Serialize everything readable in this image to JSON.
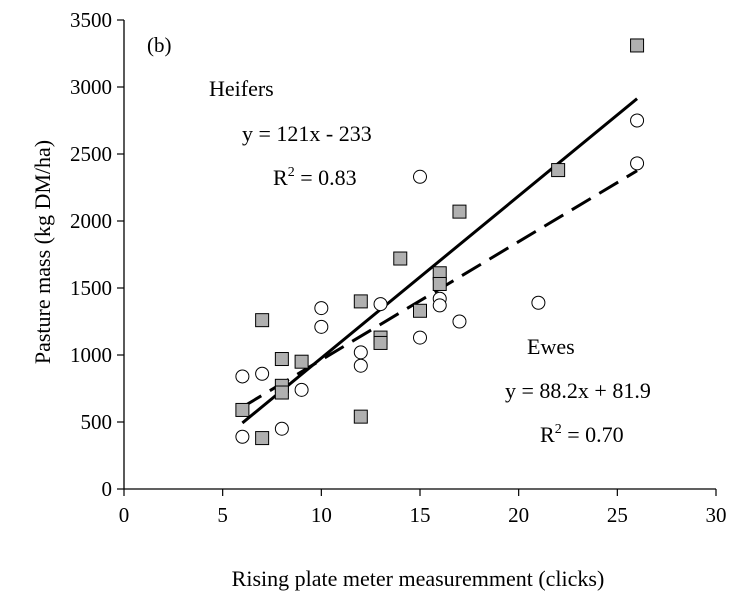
{
  "chart_data": {
    "type": "scatter",
    "panel_label": "(b)",
    "xlabel": "Rising plate meter measuremment (clicks)",
    "ylabel": "Pasture mass (kg DM/ha)",
    "xlim": [
      0,
      30
    ],
    "ylim": [
      0,
      3500
    ],
    "x_ticks": [
      "0",
      "5",
      "10",
      "15",
      "20",
      "25",
      "30"
    ],
    "y_ticks": [
      "0",
      "500",
      "1000",
      "1500",
      "2000",
      "2500",
      "3000",
      "3500"
    ],
    "grid": false,
    "series": [
      {
        "name": "Heifers",
        "marker": "square",
        "color": "#b0b0b0",
        "points": [
          [
            6,
            590
          ],
          [
            7,
            1260
          ],
          [
            7,
            380
          ],
          [
            8,
            970
          ],
          [
            8,
            770
          ],
          [
            8,
            720
          ],
          [
            9,
            950
          ],
          [
            12,
            1400
          ],
          [
            12,
            540
          ],
          [
            13,
            1130
          ],
          [
            13,
            1090
          ],
          [
            14,
            1720
          ],
          [
            15,
            1330
          ],
          [
            16,
            1610
          ],
          [
            16,
            1530
          ],
          [
            17,
            2070
          ],
          [
            22,
            2380
          ],
          [
            26,
            3310
          ]
        ],
        "fit": {
          "slope": 121,
          "intercept": -233,
          "x_range": [
            6,
            26
          ],
          "line_style": "solid"
        }
      },
      {
        "name": "Ewes",
        "marker": "circle",
        "color": "#ffffff",
        "points": [
          [
            6,
            840
          ],
          [
            6,
            390
          ],
          [
            7,
            860
          ],
          [
            8,
            450
          ],
          [
            9,
            740
          ],
          [
            10,
            1350
          ],
          [
            10,
            1210
          ],
          [
            12,
            1020
          ],
          [
            12,
            920
          ],
          [
            13,
            1380
          ],
          [
            15,
            2330
          ],
          [
            15,
            1130
          ],
          [
            16,
            1420
          ],
          [
            16,
            1370
          ],
          [
            17,
            1250
          ],
          [
            21,
            1390
          ],
          [
            26,
            2750
          ],
          [
            26,
            2430
          ]
        ],
        "fit": {
          "slope": 88.2,
          "intercept": 81.9,
          "x_range": [
            6,
            26
          ],
          "line_style": "dashed"
        }
      }
    ],
    "annotations": {
      "heifers_label": "Heifers",
      "heifers_eq": "y = 121x - 233",
      "heifers_r2_prefix": "R",
      "heifers_r2_exp": "2",
      "heifers_r2_value": " = 0.83",
      "ewes_label": "Ewes",
      "ewes_eq": "y = 88.2x + 81.9",
      "ewes_r2_prefix": "R",
      "ewes_r2_exp": "2",
      "ewes_r2_value": " = 0.70"
    }
  }
}
